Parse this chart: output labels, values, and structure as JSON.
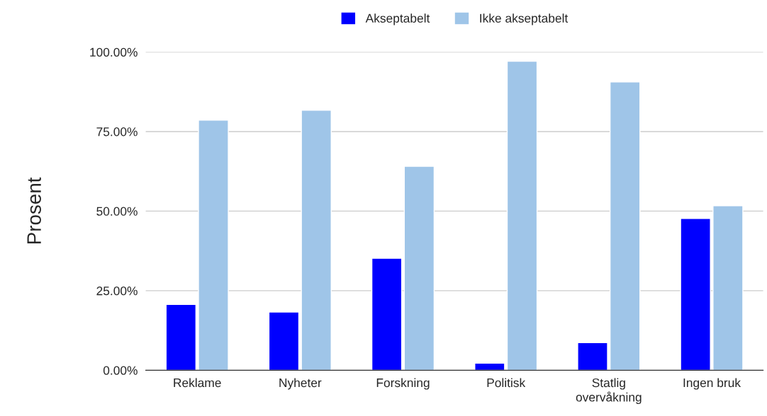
{
  "chart_data": {
    "type": "bar",
    "ylabel": "Prosent",
    "categories": [
      "Reklame",
      "Nyheter",
      "Forskning",
      "Politisk",
      "Statlig\novervåkning",
      "Ingen bruk"
    ],
    "series": [
      {
        "name": "Akseptabelt",
        "color": "#0000ff",
        "values": [
          20.7,
          18.3,
          35.2,
          2.2,
          8.7,
          47.7
        ]
      },
      {
        "name": "Ikke akseptabelt",
        "color": "#9fc5e8",
        "values": [
          78.6,
          81.7,
          64.1,
          97.1,
          90.6,
          51.7
        ]
      }
    ],
    "ylim": [
      0,
      100
    ],
    "yticks": [
      {
        "value": 0,
        "label": "0.00%"
      },
      {
        "value": 25,
        "label": "25.00%"
      },
      {
        "value": 50,
        "label": "50.00%"
      },
      {
        "value": 75,
        "label": "75.00%"
      },
      {
        "value": 100,
        "label": "100.00%"
      }
    ],
    "grid": "y",
    "legend": "top"
  }
}
